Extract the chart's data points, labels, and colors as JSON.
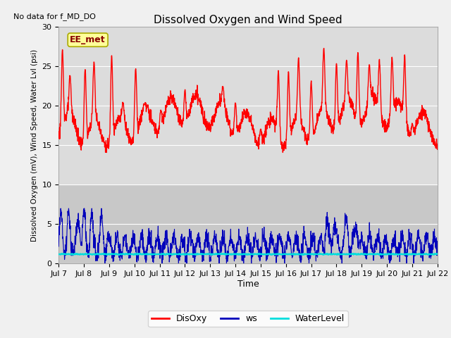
{
  "title": "Dissolved Oxygen and Wind Speed",
  "top_left_text": "No data for f_MD_DO",
  "ylabel": "Dissolved Oxygen (mV), Wind Speed, Water Lvl (psi)",
  "xlabel": "Time",
  "annotation_box": "EE_met",
  "ylim": [
    0,
    30
  ],
  "yticks": [
    0,
    5,
    10,
    15,
    20,
    25,
    30
  ],
  "xtick_labels": [
    "Jul 7",
    "Jul 8",
    "Jul 9",
    "Jul 10",
    "Jul 11",
    "Jul 12",
    "Jul 13",
    "Jul 14",
    "Jul 15",
    "Jul 16",
    "Jul 17",
    "Jul 18",
    "Jul 19",
    "Jul 20",
    "Jul 21",
    "Jul 22"
  ],
  "colors": {
    "DisOxy": "#ff0000",
    "ws": "#0000bb",
    "WaterLevel": "#00dddd",
    "plot_bg_upper": "#dcdcdc",
    "plot_bg_lower": "#c8c8c8",
    "grid": "#ffffff",
    "annotation_box_bg": "#ffff99",
    "annotation_box_border": "#aaaa00"
  },
  "legend_labels": [
    "DisOxy",
    "ws",
    "WaterLevel"
  ],
  "water_level_value": 1.2,
  "title_fontsize": 11,
  "ylabel_fontsize": 7.5,
  "xlabel_fontsize": 9,
  "tick_fontsize": 8,
  "legend_fontsize": 9
}
